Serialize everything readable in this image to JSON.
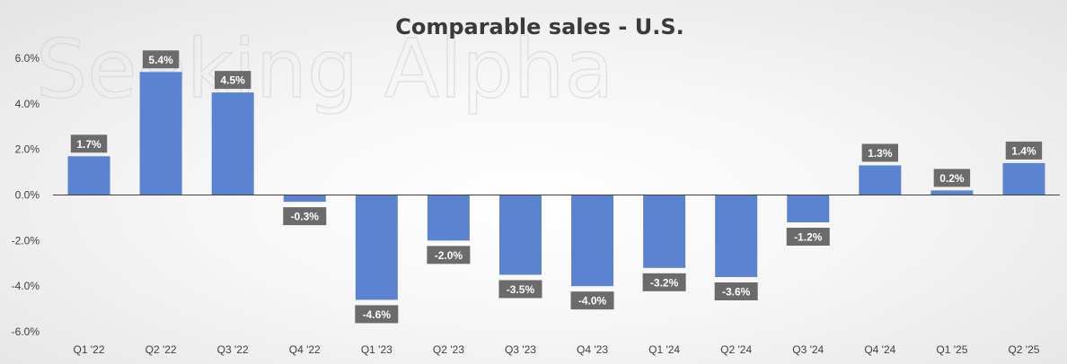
{
  "chart_data": {
    "type": "bar",
    "title": "Comparable sales - U.S.",
    "categories": [
      "Q1 '22",
      "Q2 '22",
      "Q3 '22",
      "Q4 '22",
      "Q1 '23",
      "Q2 '23",
      "Q3 '23",
      "Q4 '23",
      "Q1 '24",
      "Q2 '24",
      "Q3 '24",
      "Q4 '24",
      "Q1 '25",
      "Q2 '25"
    ],
    "values": [
      1.7,
      5.4,
      4.5,
      -0.3,
      -4.6,
      -2.0,
      -3.5,
      -4.0,
      -3.2,
      -3.6,
      -1.2,
      1.3,
      0.2,
      1.4
    ],
    "data_labels": [
      "1.7%",
      "5.4%",
      "4.5%",
      "-0.3%",
      "-4.6%",
      "-2.0%",
      "-3.5%",
      "-4.0%",
      "-3.2%",
      "-3.6%",
      "-1.2%",
      "1.3%",
      "0.2%",
      "1.4%"
    ],
    "ylim": [
      -6,
      6
    ],
    "yticks": [
      6,
      4,
      2,
      0,
      -2,
      -4,
      -6
    ],
    "ytick_labels": [
      "6.0%",
      "4.0%",
      "2.0%",
      "0.0%",
      "-2.0%",
      "-4.0%",
      "-6.0%"
    ],
    "xlabel": "",
    "ylabel": "",
    "grid": false,
    "legend": "none",
    "colors": {
      "bar": "#5b83d0",
      "label_box": "#6b6b6b",
      "axis": "#404040"
    }
  },
  "watermark": "Seeking Alpha"
}
